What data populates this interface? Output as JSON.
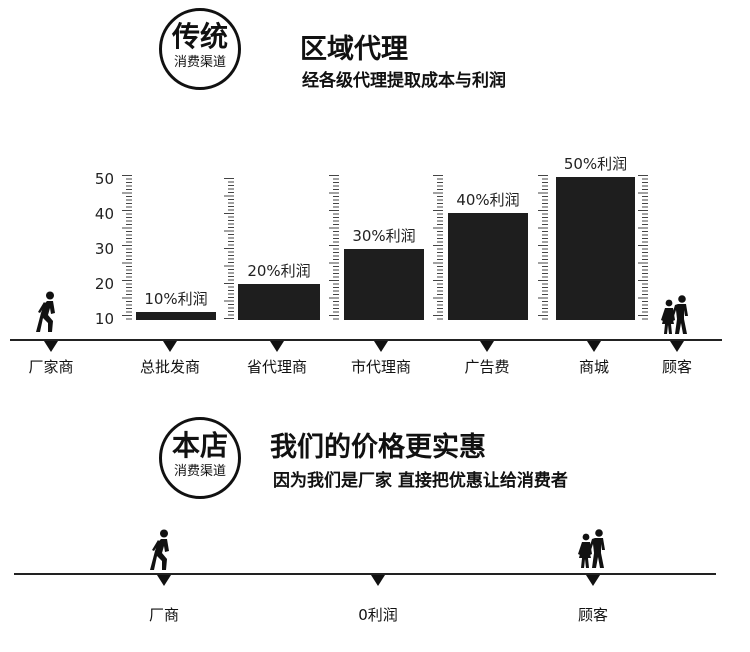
{
  "traditional": {
    "badge_main": "传统",
    "badge_sub": "消费渠道",
    "title": "区域代理",
    "subtitle": "经各级代理提取成本与利润",
    "nodes": [
      "厂家商",
      "总批发商",
      "省代理商",
      "市代理商",
      "广告费",
      "商城",
      "顾客"
    ]
  },
  "ours": {
    "badge_main": "本店",
    "badge_sub": "消费渠道",
    "title": "我们的价格更实惠",
    "subtitle": "因为我们是厂家  直接把优惠让给消费者",
    "nodes": [
      "厂商",
      "0利润",
      "顾客"
    ]
  },
  "chart_data": {
    "type": "bar",
    "categories": [
      "总批发商",
      "省代理商",
      "市代理商",
      "广告费",
      "商城"
    ],
    "values": [
      10,
      20,
      30,
      40,
      50
    ],
    "data_labels": [
      "10%利润",
      "20%利润",
      "30%利润",
      "40%利润",
      "50%利润"
    ],
    "yticks": [
      "50",
      "40",
      "30",
      "20",
      "10"
    ],
    "ylim": [
      10,
      50
    ],
    "grid": false,
    "legend": "none",
    "bar_color": "#1e1e1e"
  },
  "icons": [
    "walking-person-icon",
    "couple-walking-icon"
  ]
}
